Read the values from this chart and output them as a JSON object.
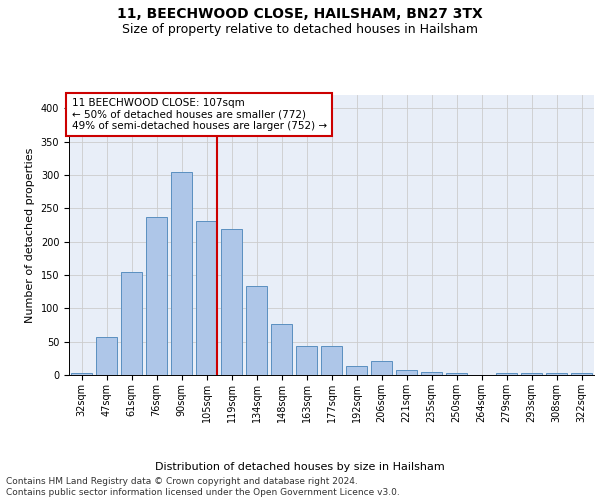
{
  "title": "11, BEECHWOOD CLOSE, HAILSHAM, BN27 3TX",
  "subtitle": "Size of property relative to detached houses in Hailsham",
  "xlabel": "Distribution of detached houses by size in Hailsham",
  "ylabel": "Number of detached properties",
  "categories": [
    "32sqm",
    "47sqm",
    "61sqm",
    "76sqm",
    "90sqm",
    "105sqm",
    "119sqm",
    "134sqm",
    "148sqm",
    "163sqm",
    "177sqm",
    "192sqm",
    "206sqm",
    "221sqm",
    "235sqm",
    "250sqm",
    "264sqm",
    "279sqm",
    "293sqm",
    "308sqm",
    "322sqm"
  ],
  "values": [
    3,
    57,
    155,
    237,
    305,
    231,
    219,
    133,
    76,
    43,
    43,
    13,
    21,
    7,
    4,
    3,
    0,
    3,
    3,
    3,
    3
  ],
  "bar_color": "#aec6e8",
  "bar_edge_color": "#5a8fc0",
  "vline_x_index": 5,
  "vline_color": "#cc0000",
  "annotation_text": "11 BEECHWOOD CLOSE: 107sqm\n← 50% of detached houses are smaller (772)\n49% of semi-detached houses are larger (752) →",
  "annotation_box_color": "#ffffff",
  "annotation_box_edge": "#cc0000",
  "ylim": [
    0,
    420
  ],
  "yticks": [
    0,
    50,
    100,
    150,
    200,
    250,
    300,
    350,
    400
  ],
  "grid_color": "#cccccc",
  "background_color": "#e8eef8",
  "footer_text": "Contains HM Land Registry data © Crown copyright and database right 2024.\nContains public sector information licensed under the Open Government Licence v3.0.",
  "title_fontsize": 10,
  "subtitle_fontsize": 9,
  "axis_label_fontsize": 8,
  "tick_fontsize": 7,
  "annotation_fontsize": 7.5,
  "footer_fontsize": 6.5
}
